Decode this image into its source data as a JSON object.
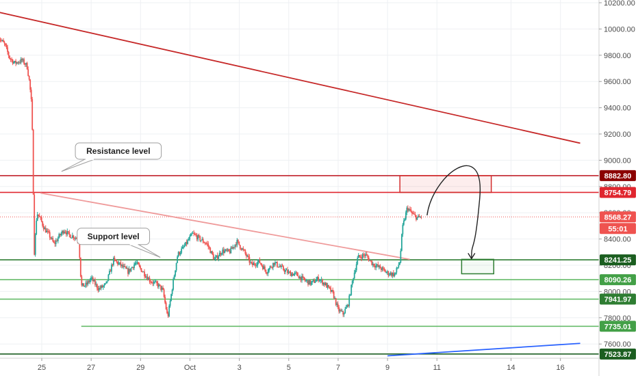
{
  "chart_data": {
    "type": "candlestick",
    "instrument": "",
    "yaxis": {
      "range": [
        7500,
        10250
      ],
      "ticks": [
        {
          "value": 10200,
          "label": "10200.00"
        },
        {
          "value": 10000,
          "label": "10000.00"
        },
        {
          "value": 9800,
          "label": "9800.00"
        },
        {
          "value": 9600,
          "label": "9600.00"
        },
        {
          "value": 9400,
          "label": "9400.00"
        },
        {
          "value": 9200,
          "label": "9200.00"
        },
        {
          "value": 9000,
          "label": "9000.00"
        },
        {
          "value": 8800,
          "label": "8800.00"
        },
        {
          "value": 8600,
          "label": "8600.00"
        },
        {
          "value": 8400,
          "label": "8400.00"
        },
        {
          "value": 8200,
          "label": "8200.00"
        },
        {
          "value": 8000,
          "label": "8000.00"
        },
        {
          "value": 7800,
          "label": "7800.00"
        },
        {
          "value": 7600,
          "label": "7600.00"
        }
      ]
    },
    "xaxis": {
      "range": [
        23.2,
        18.5
      ],
      "ticks": [
        {
          "value": 25,
          "label": "25"
        },
        {
          "value": 27,
          "label": "27"
        },
        {
          "value": 29,
          "label": "29"
        },
        {
          "value": 31,
          "label": "Oct"
        },
        {
          "value": 33,
          "label": "3"
        },
        {
          "value": 35,
          "label": "5"
        },
        {
          "value": 37,
          "label": "7"
        },
        {
          "value": 39,
          "label": "9"
        },
        {
          "value": 41,
          "label": "11"
        },
        {
          "value": 44,
          "label": "14"
        },
        {
          "value": 46,
          "label": "16"
        }
      ]
    },
    "price_path": [
      [
        23.2,
        9950
      ],
      [
        23.5,
        9880
      ],
      [
        23.7,
        9780
      ],
      [
        23.9,
        9740
      ],
      [
        24.2,
        9760
      ],
      [
        24.4,
        9720
      ],
      [
        24.5,
        9600
      ],
      [
        24.6,
        9400
      ],
      [
        24.7,
        8300
      ],
      [
        24.8,
        8600
      ],
      [
        24.95,
        8550
      ],
      [
        25.1,
        8480
      ],
      [
        25.3,
        8430
      ],
      [
        25.5,
        8360
      ],
      [
        25.7,
        8420
      ],
      [
        25.9,
        8470
      ],
      [
        26.1,
        8430
      ],
      [
        26.3,
        8420
      ],
      [
        26.5,
        8390
      ],
      [
        26.6,
        8040
      ],
      [
        26.8,
        8050
      ],
      [
        27.0,
        8100
      ],
      [
        27.3,
        8020
      ],
      [
        27.6,
        8050
      ],
      [
        27.9,
        8240
      ],
      [
        28.2,
        8200
      ],
      [
        28.5,
        8150
      ],
      [
        28.8,
        8220
      ],
      [
        29.1,
        8150
      ],
      [
        29.4,
        8080
      ],
      [
        29.7,
        8050
      ],
      [
        29.9,
        8010
      ],
      [
        30.1,
        7800
      ],
      [
        30.3,
        8050
      ],
      [
        30.5,
        8280
      ],
      [
        30.8,
        8350
      ],
      [
        31.1,
        8440
      ],
      [
        31.4,
        8400
      ],
      [
        31.7,
        8360
      ],
      [
        32.0,
        8240
      ],
      [
        32.3,
        8310
      ],
      [
        32.6,
        8300
      ],
      [
        32.9,
        8380
      ],
      [
        33.2,
        8300
      ],
      [
        33.5,
        8200
      ],
      [
        33.8,
        8230
      ],
      [
        34.1,
        8150
      ],
      [
        34.4,
        8220
      ],
      [
        34.7,
        8180
      ],
      [
        35.0,
        8140
      ],
      [
        35.3,
        8130
      ],
      [
        35.6,
        8090
      ],
      [
        35.9,
        8060
      ],
      [
        36.2,
        8100
      ],
      [
        36.5,
        8050
      ],
      [
        36.8,
        7980
      ],
      [
        37.0,
        7860
      ],
      [
        37.2,
        7830
      ],
      [
        37.4,
        7900
      ],
      [
        37.6,
        8100
      ],
      [
        37.8,
        8260
      ],
      [
        38.1,
        8280
      ],
      [
        38.4,
        8210
      ],
      [
        38.7,
        8180
      ],
      [
        39.0,
        8140
      ],
      [
        39.3,
        8130
      ],
      [
        39.5,
        8230
      ],
      [
        39.6,
        8480
      ],
      [
        39.8,
        8640
      ],
      [
        40.0,
        8590
      ],
      [
        40.2,
        8560
      ],
      [
        40.4,
        8570
      ]
    ],
    "horizontal_levels": [
      {
        "value": 8882.8,
        "label": "8882.80",
        "color": "#c0202a",
        "tag_bg": "#8b0000"
      },
      {
        "value": 8754.79,
        "label": "8754.79",
        "color": "#e0262f",
        "tag_bg": "#e0262f"
      },
      {
        "value": 8568.27,
        "label": "8568.27",
        "color": "#ef5350",
        "tag_bg": "#ef5350",
        "dotted": true
      },
      {
        "value": 8241.25,
        "label": "8241.25",
        "color": "#2e7d32",
        "tag_bg": "#1b5e20"
      },
      {
        "value": 8090.26,
        "label": "8090.26",
        "color": "#66bb6a",
        "tag_bg": "#43a047"
      },
      {
        "value": 7941.97,
        "label": "7941.97",
        "color": "#66bb6a",
        "tag_bg": "#2e7d32"
      },
      {
        "value": 7735.01,
        "label": "7735.01",
        "color": "#66bb6a",
        "tag_bg": "#43a047",
        "from_x": 26.6
      },
      {
        "value": 7523.87,
        "label": "7523.87",
        "color": "#1b5e20",
        "tag_bg": "#1b5e20"
      }
    ],
    "countdown_tag": {
      "label": "55:01",
      "color": "#ef5350"
    },
    "trendlines": [
      {
        "from": [
          23.2,
          10130
        ],
        "to": [
          46.8,
          9130
        ],
        "color": "#c62828"
      },
      {
        "from": [
          24.95,
          8750
        ],
        "to": [
          39.9,
          8245
        ],
        "color": "#ef9a9a"
      },
      {
        "from": [
          39.0,
          7510
        ],
        "to": [
          46.8,
          7605
        ],
        "color": "#2962ff"
      }
    ],
    "zones": [
      {
        "x0": 39.5,
        "x1": 43.2,
        "y0": 8882.8,
        "y1": 8754.79,
        "kind": "resistance",
        "color": "#d32f2f"
      },
      {
        "x0": 42.0,
        "x1": 43.3,
        "y0": 8245,
        "y1": 8135,
        "kind": "target",
        "color": "#2e7d32"
      }
    ],
    "projection": {
      "from": [
        40.6,
        8580
      ],
      "via": [
        42.4,
        8920
      ],
      "to": [
        42.4,
        8250
      ]
    },
    "annotations": [
      {
        "text": "Resistance level",
        "at": [
          28.1,
          9070
        ],
        "pointer": [
          25.8,
          8915
        ]
      },
      {
        "text": "Support level",
        "at": [
          27.9,
          8420
        ],
        "pointer": [
          29.8,
          8260
        ]
      }
    ]
  }
}
